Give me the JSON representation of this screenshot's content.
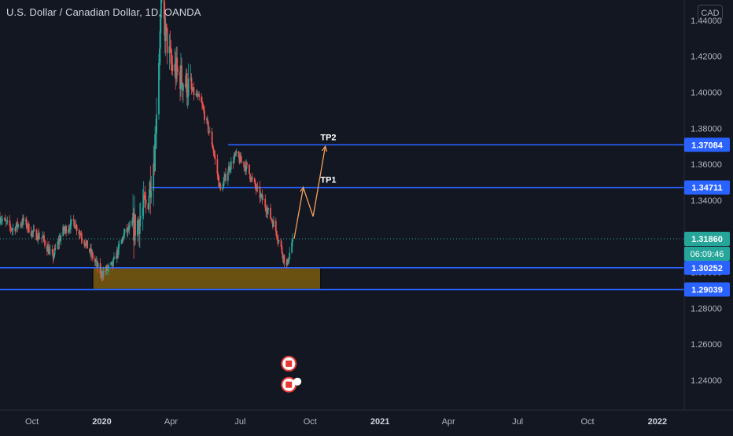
{
  "header": {
    "title": "U.S. Dollar / Canadian Dollar, 1D, OANDA",
    "currency_button": "CAD"
  },
  "colors": {
    "background": "#131722",
    "up_candle": "#26a69a",
    "down_candle": "#ef5350",
    "level_line": "#2962ff",
    "last_price": "#26a69a",
    "zone_fill": "#7a5c0e",
    "arrow": "#f5a05b",
    "axis_text": "#b2b5be"
  },
  "chart_data": {
    "type": "candlestick",
    "title": "U.S. Dollar / Canadian Dollar, 1D, OANDA",
    "x_tick_labels": [
      "Oct",
      "2020",
      "Apr",
      "Jul",
      "Oct",
      "2021",
      "Apr",
      "Jul",
      "Oct",
      "2022"
    ],
    "y_tick_labels": [
      "1.44000",
      "1.42000",
      "1.40000",
      "1.38000",
      "1.36000",
      "1.34000",
      "1.32000",
      "1.30000",
      "1.28000",
      "1.26000",
      "1.24000"
    ],
    "y_ticks": [
      1.44,
      1.42,
      1.4,
      1.38,
      1.36,
      1.34,
      1.32,
      1.3,
      1.28,
      1.26,
      1.24
    ],
    "ylim": [
      1.2234,
      1.4513
    ],
    "xlim": [
      "2019-08-20",
      "2022-01-28"
    ],
    "price_path": [
      {
        "date": "2019-08-20",
        "close": 1.3305
      },
      {
        "date": "2019-09-05",
        "close": 1.324
      },
      {
        "date": "2019-09-20",
        "close": 1.3285
      },
      {
        "date": "2019-10-01",
        "close": 1.322
      },
      {
        "date": "2019-10-15",
        "close": 1.319
      },
      {
        "date": "2019-10-28",
        "close": 1.308
      },
      {
        "date": "2019-11-10",
        "close": 1.3225
      },
      {
        "date": "2019-11-25",
        "close": 1.328
      },
      {
        "date": "2019-12-12",
        "close": 1.315
      },
      {
        "date": "2019-12-31",
        "close": 1.299
      },
      {
        "date": "2020-01-15",
        "close": 1.304
      },
      {
        "date": "2020-01-31",
        "close": 1.322
      },
      {
        "date": "2020-02-15",
        "close": 1.326
      },
      {
        "date": "2020-03-01",
        "close": 1.339
      },
      {
        "date": "2020-03-10",
        "close": 1.365
      },
      {
        "date": "2020-03-19",
        "close": 1.447
      },
      {
        "date": "2020-04-01",
        "close": 1.415
      },
      {
        "date": "2020-04-20",
        "close": 1.405
      },
      {
        "date": "2020-05-10",
        "close": 1.395
      },
      {
        "date": "2020-05-25",
        "close": 1.372
      },
      {
        "date": "2020-06-05",
        "close": 1.345
      },
      {
        "date": "2020-06-15",
        "close": 1.357
      },
      {
        "date": "2020-06-25",
        "close": 1.365
      },
      {
        "date": "2020-07-10",
        "close": 1.358
      },
      {
        "date": "2020-07-20",
        "close": 1.348
      },
      {
        "date": "2020-08-01",
        "close": 1.339
      },
      {
        "date": "2020-08-15",
        "close": 1.326
      },
      {
        "date": "2020-08-31",
        "close": 1.303
      },
      {
        "date": "2020-09-08",
        "close": 1.3186
      }
    ],
    "levels": [
      {
        "label": "TP2",
        "value": 1.37084,
        "from": "2020-06-15"
      },
      {
        "label": "TP1",
        "value": 1.34711,
        "from": "2020-03-05"
      },
      {
        "value": 1.30252,
        "from": "2019-08-20"
      },
      {
        "value": 1.29039,
        "from": "2019-08-20"
      }
    ],
    "zone": {
      "from": "2019-12-20",
      "to": "2020-10-15",
      "top": 1.30252,
      "bottom": 1.29039
    },
    "projection": [
      {
        "date": "2020-09-10",
        "price": 1.3186
      },
      {
        "date": "2020-09-22",
        "price": 1.347
      },
      {
        "date": "2020-10-05",
        "price": 1.331
      },
      {
        "date": "2020-10-21",
        "price": 1.37
      }
    ],
    "last_price": {
      "value": "1.31860",
      "countdown": "06:09:46",
      "numeric": 1.3186
    },
    "price_labels": [
      "1.37084",
      "1.34711",
      "1.31860",
      "1.30252",
      "1.29039"
    ],
    "event_markers": [
      {
        "date": "2020-09-03",
        "price": 1.2492
      },
      {
        "date": "2020-09-03",
        "price": 1.2375
      }
    ]
  }
}
